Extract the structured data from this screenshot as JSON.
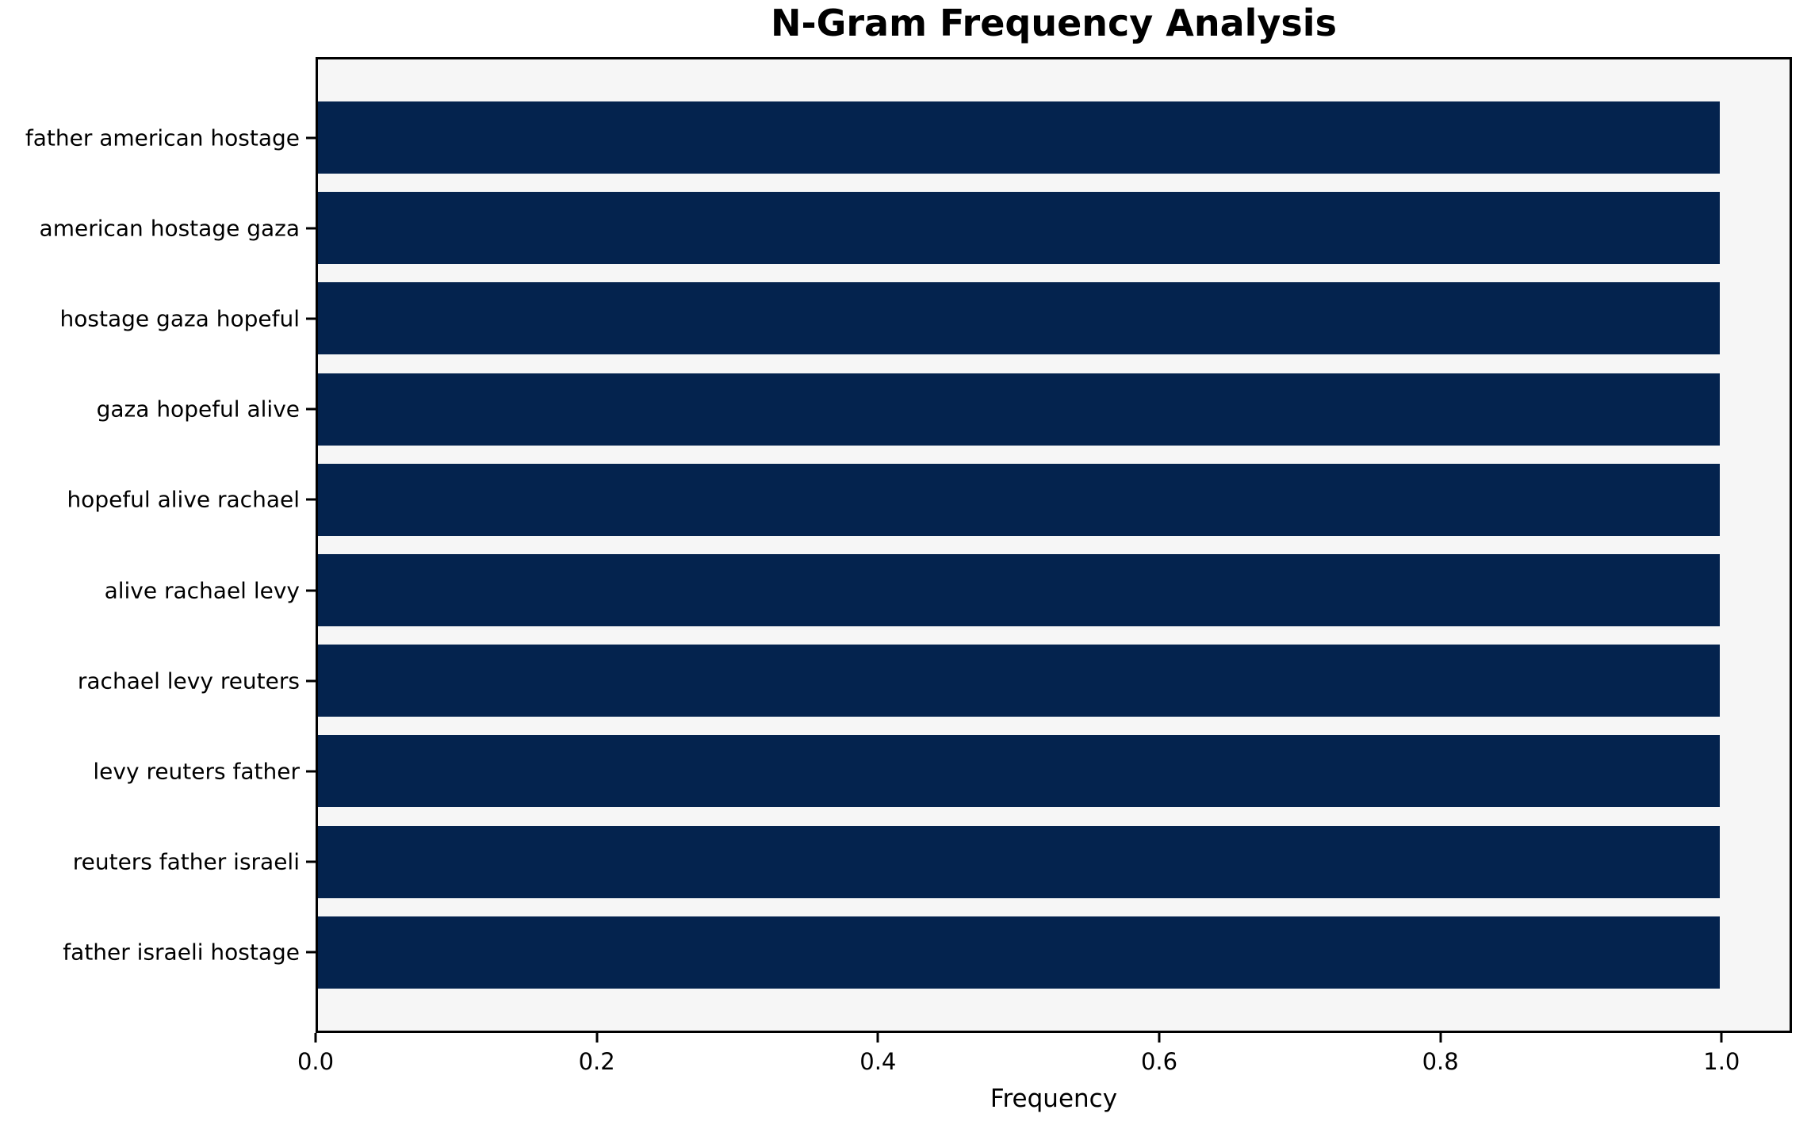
{
  "chart_data": {
    "type": "bar",
    "orientation": "horizontal",
    "title": "N-Gram Frequency Analysis",
    "xlabel": "Frequency",
    "ylabel": "",
    "categories": [
      "father american hostage",
      "american hostage gaza",
      "hostage gaza hopeful",
      "gaza hopeful alive",
      "hopeful alive rachael",
      "alive rachael levy",
      "rachael levy reuters",
      "levy reuters father",
      "reuters father israeli",
      "father israeli hostage"
    ],
    "values": [
      1.0,
      1.0,
      1.0,
      1.0,
      1.0,
      1.0,
      1.0,
      1.0,
      1.0,
      1.0
    ],
    "xlim": [
      0,
      1.05
    ],
    "xticks": [
      {
        "value": 0.0,
        "label": "0.0"
      },
      {
        "value": 0.2,
        "label": "0.2"
      },
      {
        "value": 0.4,
        "label": "0.4"
      },
      {
        "value": 0.6,
        "label": "0.6"
      },
      {
        "value": 0.8,
        "label": "0.8"
      },
      {
        "value": 1.0,
        "label": "1.0"
      }
    ],
    "grid": false,
    "legend": null,
    "colors": {
      "bar": "#04234e",
      "plot_background": "#f6f6f6",
      "figure_background": "#ffffff",
      "spine": "#000000",
      "text": "#000000"
    }
  }
}
